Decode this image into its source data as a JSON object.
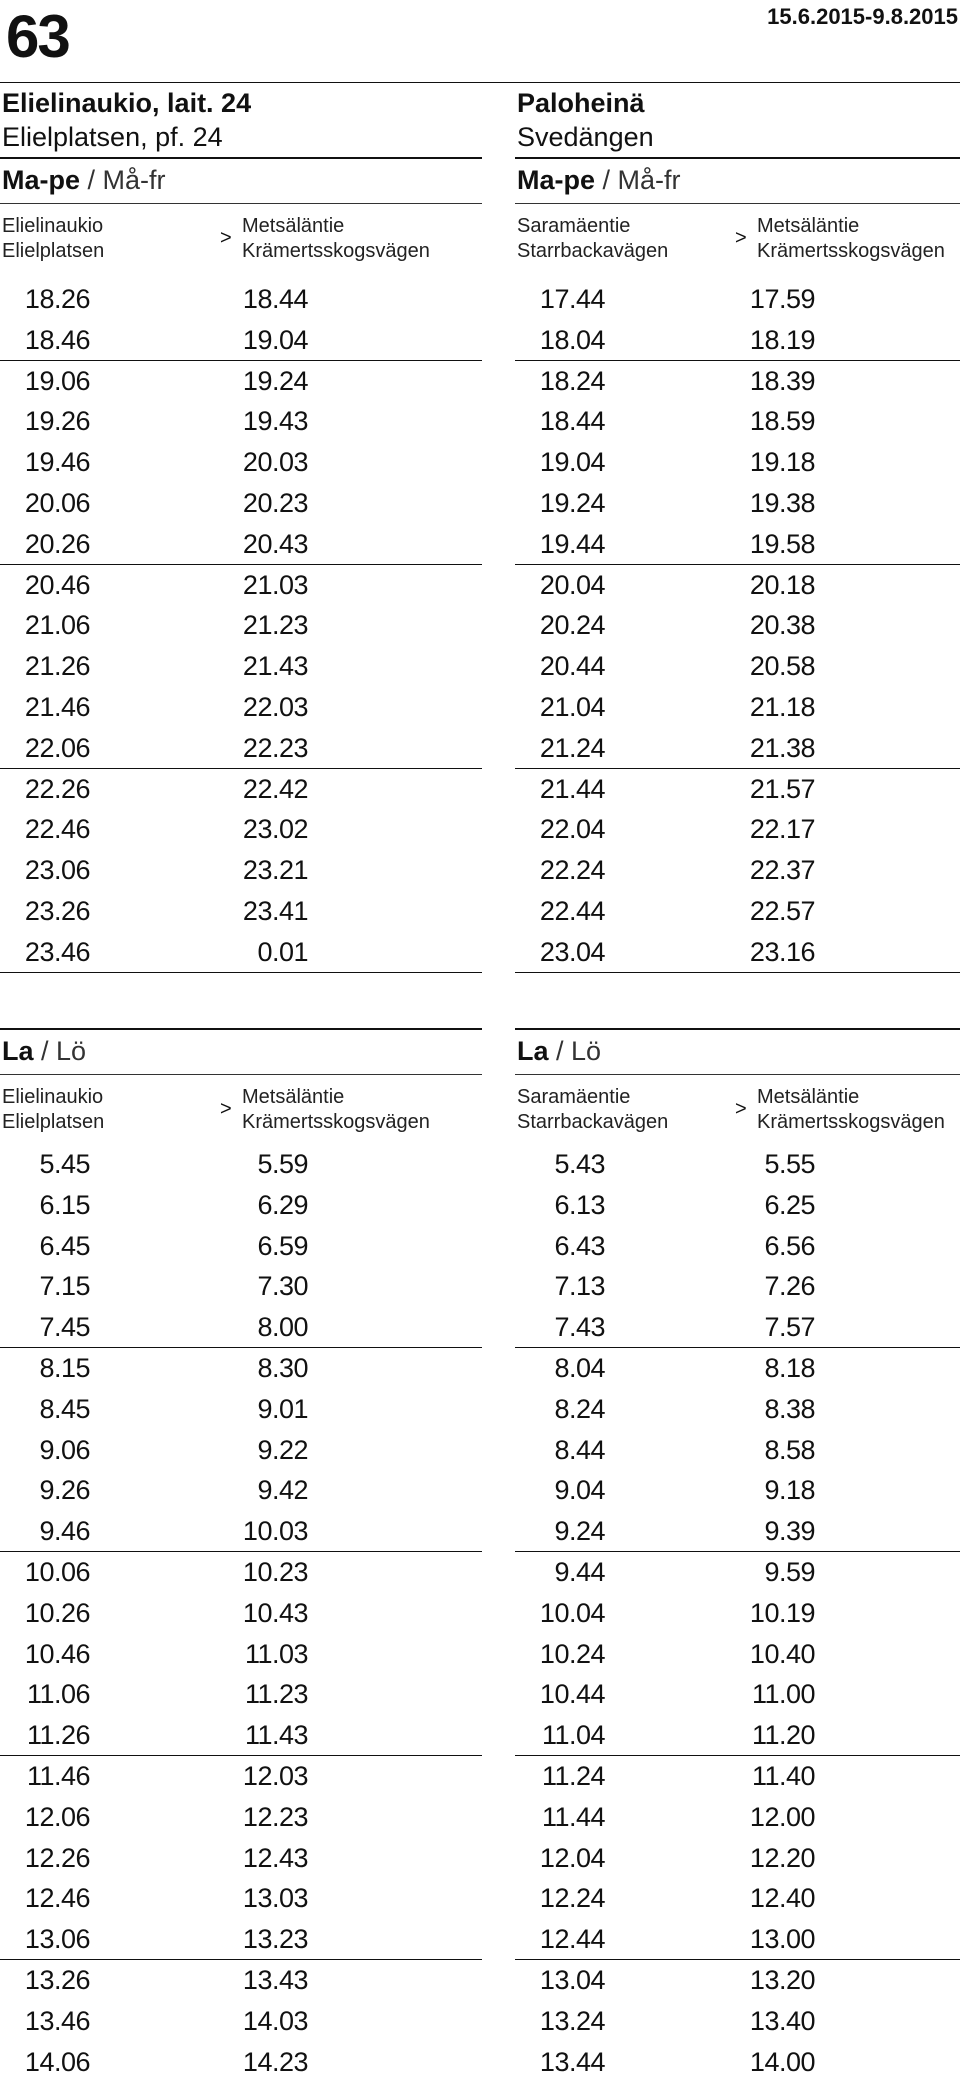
{
  "header": {
    "route": "63",
    "validity": "15.6.2015-9.8.2015"
  },
  "columns": [
    {
      "stop_fi": "Elielinaukio, lait. 24",
      "stop_sv": "Elielplatsen, pf. 24",
      "sections": [
        {
          "day_fi": "Ma-pe",
          "day_sv": "/ Må-fr",
          "from": [
            "Elielinaukio",
            "Elielplatsen"
          ],
          "arrow": ">",
          "to": [
            "Metsäläntie",
            "Krämertsskogsvägen"
          ],
          "rows": [
            [
              "18.26",
              "18.44"
            ],
            [
              "18.46",
              "19.04"
            ],
            [
              "19.06",
              "19.24"
            ],
            [
              "19.26",
              "19.43"
            ],
            [
              "19.46",
              "20.03"
            ],
            [
              "20.06",
              "20.23"
            ],
            [
              "20.26",
              "20.43"
            ],
            [
              "20.46",
              "21.03"
            ],
            [
              "21.06",
              "21.23"
            ],
            [
              "21.26",
              "21.43"
            ],
            [
              "21.46",
              "22.03"
            ],
            [
              "22.06",
              "22.23"
            ],
            [
              "22.26",
              "22.42"
            ],
            [
              "22.46",
              "23.02"
            ],
            [
              "23.06",
              "23.21"
            ],
            [
              "23.26",
              "23.41"
            ],
            [
              "23.46",
              "0.01"
            ]
          ]
        },
        {
          "day_fi": "La",
          "day_sv": "/ Lö",
          "from": [
            "Elielinaukio",
            "Elielplatsen"
          ],
          "arrow": ">",
          "to": [
            "Metsäläntie",
            "Krämertsskogsvägen"
          ],
          "rows": [
            [
              "5.45",
              "5.59"
            ],
            [
              "6.15",
              "6.29"
            ],
            [
              "6.45",
              "6.59"
            ],
            [
              "7.15",
              "7.30"
            ],
            [
              "7.45",
              "8.00"
            ],
            [
              "8.15",
              "8.30"
            ],
            [
              "8.45",
              "9.01"
            ],
            [
              "9.06",
              "9.22"
            ],
            [
              "9.26",
              "9.42"
            ],
            [
              "9.46",
              "10.03"
            ],
            [
              "10.06",
              "10.23"
            ],
            [
              "10.26",
              "10.43"
            ],
            [
              "10.46",
              "11.03"
            ],
            [
              "11.06",
              "11.23"
            ],
            [
              "11.26",
              "11.43"
            ],
            [
              "11.46",
              "12.03"
            ],
            [
              "12.06",
              "12.23"
            ],
            [
              "12.26",
              "12.43"
            ],
            [
              "12.46",
              "13.03"
            ],
            [
              "13.06",
              "13.23"
            ],
            [
              "13.26",
              "13.43"
            ],
            [
              "13.46",
              "14.03"
            ],
            [
              "14.06",
              "14.23"
            ]
          ]
        }
      ]
    },
    {
      "stop_fi": "Paloheinä",
      "stop_sv": "Svedängen",
      "sections": [
        {
          "day_fi": "Ma-pe",
          "day_sv": "/ Må-fr",
          "from": [
            "Saramäentie",
            "Starrbackavägen"
          ],
          "arrow": ">",
          "to": [
            "Metsäläntie",
            "Krämertsskogsvägen"
          ],
          "rows": [
            [
              "17.44",
              "17.59"
            ],
            [
              "18.04",
              "18.19"
            ],
            [
              "18.24",
              "18.39"
            ],
            [
              "18.44",
              "18.59"
            ],
            [
              "19.04",
              "19.18"
            ],
            [
              "19.24",
              "19.38"
            ],
            [
              "19.44",
              "19.58"
            ],
            [
              "20.04",
              "20.18"
            ],
            [
              "20.24",
              "20.38"
            ],
            [
              "20.44",
              "20.58"
            ],
            [
              "21.04",
              "21.18"
            ],
            [
              "21.24",
              "21.38"
            ],
            [
              "21.44",
              "21.57"
            ],
            [
              "22.04",
              "22.17"
            ],
            [
              "22.24",
              "22.37"
            ],
            [
              "22.44",
              "22.57"
            ],
            [
              "23.04",
              "23.16"
            ]
          ]
        },
        {
          "day_fi": "La",
          "day_sv": "/ Lö",
          "from": [
            "Saramäentie",
            "Starrbackavägen"
          ],
          "arrow": ">",
          "to": [
            "Metsäläntie",
            "Krämertsskogsvägen"
          ],
          "rows": [
            [
              "5.43",
              "5.55"
            ],
            [
              "6.13",
              "6.25"
            ],
            [
              "6.43",
              "6.56"
            ],
            [
              "7.13",
              "7.26"
            ],
            [
              "7.43",
              "7.57"
            ],
            [
              "8.04",
              "8.18"
            ],
            [
              "8.24",
              "8.38"
            ],
            [
              "8.44",
              "8.58"
            ],
            [
              "9.04",
              "9.18"
            ],
            [
              "9.24",
              "9.39"
            ],
            [
              "9.44",
              "9.59"
            ],
            [
              "10.04",
              "10.19"
            ],
            [
              "10.24",
              "10.40"
            ],
            [
              "10.44",
              "11.00"
            ],
            [
              "11.04",
              "11.20"
            ],
            [
              "11.24",
              "11.40"
            ],
            [
              "11.44",
              "12.00"
            ],
            [
              "12.04",
              "12.20"
            ],
            [
              "12.24",
              "12.40"
            ],
            [
              "12.44",
              "13.00"
            ],
            [
              "13.04",
              "13.20"
            ],
            [
              "13.24",
              "13.40"
            ],
            [
              "13.44",
              "14.00"
            ]
          ]
        }
      ]
    }
  ]
}
